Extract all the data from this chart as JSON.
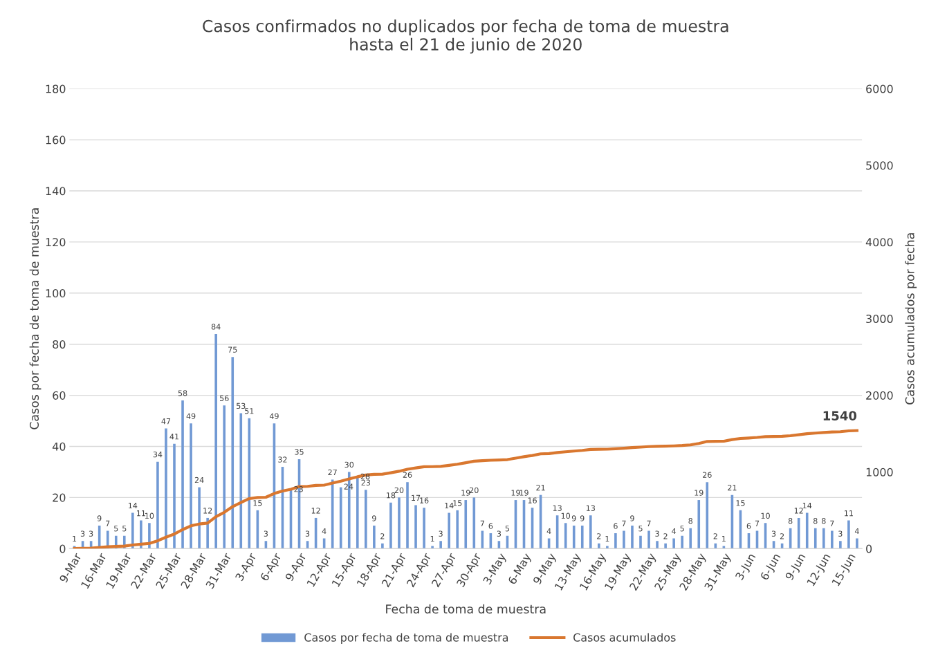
{
  "chart_data": {
    "type": "bar",
    "title": "Casos confirmados no duplicados por fecha de toma de muestra\nhasta el 21 de junio de 2020",
    "xlabel": "Fecha de toma de muestra",
    "ylabel": "Casos por fecha de toma de muestra",
    "y2label": "Casos acumulados por fecha",
    "categories": [
      "9-Mar",
      null,
      null,
      "16-Mar",
      null,
      null,
      "19-Mar",
      null,
      null,
      "22-Mar",
      null,
      null,
      "25-Mar",
      null,
      null,
      "28-Mar",
      null,
      null,
      "31-Mar",
      null,
      null,
      "3-Apr",
      null,
      null,
      "6-Apr",
      null,
      null,
      "9-Apr",
      null,
      null,
      "12-Apr",
      null,
      null,
      "15-Apr",
      null,
      null,
      "18-Apr",
      null,
      null,
      "21-Apr",
      null,
      null,
      "24-Apr",
      null,
      null,
      "27-Apr",
      null,
      null,
      "30-Apr",
      null,
      null,
      "3-May",
      null,
      null,
      "6-May",
      null,
      null,
      "9-May",
      null,
      null,
      "13-May",
      null,
      null,
      "16-May",
      null,
      null,
      "19-May",
      null,
      null,
      "22-May",
      null,
      null,
      "25-May",
      null,
      null,
      "28-May",
      null,
      null,
      "31-May",
      null,
      null,
      "3-Jun",
      null,
      null,
      "6-Jun",
      null,
      null,
      "9-Jun",
      null,
      null,
      "12-Jun",
      null,
      null,
      "15-Jun",
      null
    ],
    "series": [
      {
        "name": "Casos por fecha de toma de muestra",
        "color": "#7199d4",
        "data_labels": true,
        "values": [
          1,
          3,
          3,
          9,
          7,
          5,
          5,
          14,
          11,
          10,
          34,
          47,
          41,
          58,
          49,
          24,
          12,
          84,
          56,
          75,
          53,
          51,
          15,
          3,
          49,
          32,
          23,
          35,
          3,
          12,
          4,
          27,
          24,
          30,
          28,
          23,
          9,
          2,
          18,
          20,
          26,
          17,
          16,
          1,
          3,
          14,
          15,
          19,
          20,
          7,
          6,
          3,
          5,
          19,
          19,
          16,
          21,
          4,
          13,
          10,
          9,
          9,
          13,
          2,
          1,
          6,
          7,
          9,
          5,
          7,
          3,
          2,
          4,
          5,
          8,
          19,
          26,
          2,
          1,
          21,
          15,
          6,
          7,
          10,
          3,
          2,
          8,
          12,
          14,
          8,
          8,
          7,
          3,
          11,
          4
        ]
      },
      {
        "name": "Casos acumulados",
        "type": "line",
        "axis": "y2",
        "color": "#d9772f",
        "values": [
          1,
          4,
          7,
          16,
          23,
          28,
          33,
          47,
          58,
          68,
          102,
          149,
          190,
          248,
          297,
          321,
          333,
          417,
          473,
          548,
          601,
          652,
          667,
          670,
          719,
          751,
          774,
          809,
          812,
          824,
          828,
          855,
          879,
          909,
          937,
          960,
          969,
          971,
          989,
          1009,
          1035,
          1052,
          1068,
          1069,
          1072,
          1086,
          1101,
          1120,
          1140,
          1147,
          1153,
          1156,
          1161,
          1180,
          1199,
          1215,
          1236,
          1240,
          1253,
          1263,
          1272,
          1281,
          1294,
          1296,
          1297,
          1303,
          1310,
          1319,
          1324,
          1331,
          1334,
          1336,
          1340,
          1345,
          1353,
          1372,
          1398,
          1400,
          1401,
          1422,
          1437,
          1443,
          1450,
          1460,
          1463,
          1465,
          1473,
          1485,
          1499,
          1507,
          1515,
          1522,
          1525,
          1536,
          1540
        ],
        "value_labels": [
          null,
          null,
          null,
          null,
          null,
          null,
          null,
          null,
          null,
          null,
          null,
          null,
          null,
          null,
          null,
          null,
          null,
          null,
          null,
          null,
          null,
          null,
          null,
          null,
          null,
          null,
          null,
          null,
          null,
          null,
          null,
          null,
          null,
          null,
          null,
          null,
          null,
          null,
          null,
          null,
          null,
          null,
          null,
          null,
          null,
          null,
          null,
          null,
          null,
          null,
          null,
          null,
          null,
          null,
          null,
          null,
          null,
          null,
          null,
          null,
          null,
          null,
          null,
          null,
          null,
          null,
          null,
          null,
          null,
          null,
          null,
          null,
          null,
          null,
          null,
          null,
          null,
          null,
          null,
          null,
          null,
          null,
          null,
          null,
          null,
          null,
          null,
          null,
          null,
          null,
          null,
          null,
          null,
          null,
          "1540"
        ]
      }
    ],
    "ylim": [
      0,
      180
    ],
    "yticks": [
      0,
      20,
      40,
      60,
      80,
      100,
      120,
      140,
      160,
      180
    ],
    "y2lim": [
      0,
      6000
    ],
    "y2ticks": [
      0,
      1000,
      2000,
      3000,
      4000,
      5000,
      6000
    ],
    "grid": "y",
    "legend": "bottom",
    "line_style": "solid",
    "marker": "none"
  }
}
